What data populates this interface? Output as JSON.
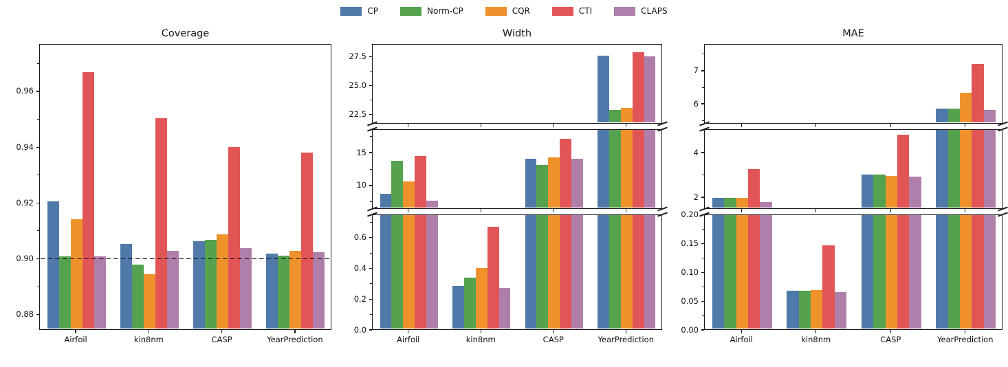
{
  "figure": {
    "background": "#ffffff",
    "axis_color": "#1a1a1e"
  },
  "legend": {
    "items": [
      {
        "label": "CP",
        "color": "#4e79a8"
      },
      {
        "label": "Norm-CP",
        "color": "#55a24e"
      },
      {
        "label": "CQR",
        "color": "#f0922c"
      },
      {
        "label": "CTI",
        "color": "#e15557"
      },
      {
        "label": "CLAPS",
        "color": "#b07fa9"
      }
    ]
  },
  "chart_data": [
    {
      "type": "bar",
      "title": "Coverage",
      "categories": [
        "Airfoil",
        "kin8nm",
        "CASP",
        "YearPrediction"
      ],
      "series": [
        {
          "name": "CP",
          "values": [
            0.9205,
            0.905,
            0.906,
            0.9015
          ]
        },
        {
          "name": "Norm-CP",
          "values": [
            0.9005,
            0.8975,
            0.9065,
            0.9008
          ]
        },
        {
          "name": "CQR",
          "values": [
            0.914,
            0.894,
            0.9085,
            0.9025
          ]
        },
        {
          "name": "CTI",
          "values": [
            0.967,
            0.9505,
            0.94,
            0.938
          ]
        },
        {
          "name": "CLAPS",
          "values": [
            0.9005,
            0.9025,
            0.9035,
            0.902
          ]
        }
      ],
      "reference_line": {
        "y": 0.9,
        "style": "dashed",
        "color": "#111111"
      },
      "legend_position": "top-center-of-figure",
      "grid": false,
      "segments": [
        {
          "ymin": 0.8745,
          "ymax": 0.977,
          "ticks": [
            {
              "v": 0.88,
              "label": "0.88"
            },
            {
              "v": 0.9,
              "label": "0.90"
            },
            {
              "v": 0.92,
              "label": "0.92"
            },
            {
              "v": 0.94,
              "label": "0.94"
            },
            {
              "v": 0.96,
              "label": "0.96"
            }
          ]
        }
      ]
    },
    {
      "type": "bar",
      "title": "Width",
      "categories": [
        "Airfoil",
        "kin8nm",
        "CASP",
        "YearPrediction"
      ],
      "series": [
        {
          "name": "CP",
          "values": [
            8.6,
            0.28,
            14.1,
            27.6
          ]
        },
        {
          "name": "Norm-CP",
          "values": [
            13.7,
            0.335,
            13.1,
            22.8
          ]
        },
        {
          "name": "CQR",
          "values": [
            10.5,
            0.4,
            14.3,
            23.0
          ]
        },
        {
          "name": "CTI",
          "values": [
            14.5,
            0.675,
            17.2,
            27.95
          ]
        },
        {
          "name": "CLAPS",
          "values": [
            7.5,
            0.27,
            14.1,
            27.55
          ]
        }
      ],
      "grid": false,
      "segments": [
        {
          "ymin": 21.7,
          "ymax": 28.6,
          "ticks": [
            {
              "v": 22.5,
              "label": "22.5"
            },
            {
              "v": 25,
              "label": "25.0"
            },
            {
              "v": 27.5,
              "label": "27.5"
            }
          ]
        },
        {
          "ymin": 6.45,
          "ymax": 18.55,
          "ticks": [
            {
              "v": 10,
              "label": "10"
            },
            {
              "v": 15,
              "label": "15"
            }
          ]
        },
        {
          "ymin": 0,
          "ymax": 0.75,
          "ticks": [
            {
              "v": 0,
              "label": "0.0"
            },
            {
              "v": 0.2,
              "label": "0.2"
            },
            {
              "v": 0.4,
              "label": "0.4"
            },
            {
              "v": 0.6,
              "label": "0.6"
            }
          ]
        }
      ]
    },
    {
      "type": "bar",
      "title": "MAE",
      "categories": [
        "Airfoil",
        "kin8nm",
        "CASP",
        "YearPrediction"
      ],
      "series": [
        {
          "name": "CP",
          "values": [
            1.91,
            0.067,
            3.01,
            5.82
          ]
        },
        {
          "name": "Norm-CP",
          "values": [
            1.91,
            0.067,
            3.01,
            5.83
          ]
        },
        {
          "name": "CQR",
          "values": [
            1.93,
            0.068,
            2.94,
            6.32
          ]
        },
        {
          "name": "CTI",
          "values": [
            3.24,
            0.147,
            4.83,
            7.22
          ]
        },
        {
          "name": "CLAPS",
          "values": [
            1.74,
            0.064,
            2.91,
            5.78
          ]
        }
      ],
      "grid": false,
      "segments": [
        {
          "ymin": 5.4,
          "ymax": 7.81,
          "ticks": [
            {
              "v": 6,
              "label": "6"
            },
            {
              "v": 7,
              "label": "7"
            }
          ]
        },
        {
          "ymin": 1.48,
          "ymax": 5.05,
          "ticks": [
            {
              "v": 2,
              "label": "2"
            },
            {
              "v": 4,
              "label": "4"
            }
          ]
        },
        {
          "ymin": 0,
          "ymax": 0.201,
          "ticks": [
            {
              "v": 0,
              "label": "0.00"
            },
            {
              "v": 0.05,
              "label": "0.05"
            },
            {
              "v": 0.1,
              "label": "0.10"
            },
            {
              "v": 0.15,
              "label": "0.15"
            },
            {
              "v": 0.2,
              "label": "0.20"
            }
          ]
        }
      ]
    }
  ]
}
